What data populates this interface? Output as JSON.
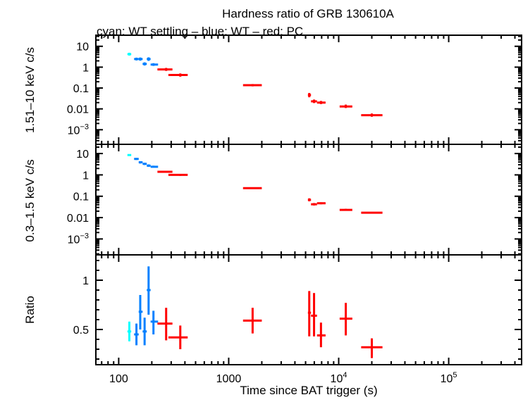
{
  "chart_data": {
    "type": "scatter",
    "title": "Hardness ratio of GRB 130610A",
    "subtitle": "cyan: WT settling – blue: WT – red: PC",
    "xlabel": "Time since BAT trigger (s)",
    "xscale": "log",
    "xlim": [
      62,
      460000
    ],
    "xticks": [
      {
        "v": 100,
        "label": "100"
      },
      {
        "v": 1000,
        "label": "1000"
      },
      {
        "v": 10000,
        "label": "10",
        "sup": "4"
      },
      {
        "v": 100000,
        "label": "10",
        "sup": "5"
      }
    ],
    "colors": {
      "wt_settling": "#00ffff",
      "wt": "#0080ff",
      "pc": "#ff0000"
    },
    "panels": [
      {
        "ylabel": "1.51–10 keV c/s",
        "yscale": "log",
        "ylim": [
          0.0002,
          34
        ],
        "yticks": [
          {
            "v": 10,
            "label": "10"
          },
          {
            "v": 1,
            "label": "1"
          },
          {
            "v": 0.1,
            "label": "0.1"
          },
          {
            "v": 0.01,
            "label": "0.01"
          },
          {
            "v": 0.001,
            "label": "10",
            "sup": "−3"
          }
        ],
        "points": [
          {
            "mode": "wt_settling",
            "t": 125,
            "tlo": 120,
            "thi": 130,
            "y": 4.2,
            "ylo": 3.6,
            "yhi": 4.9
          },
          {
            "mode": "wt",
            "t": 145,
            "tlo": 138,
            "thi": 152,
            "y": 2.45,
            "ylo": 2.1,
            "yhi": 2.85
          },
          {
            "mode": "wt",
            "t": 157,
            "tlo": 152,
            "thi": 165,
            "y": 2.45,
            "ylo": 2.05,
            "yhi": 2.9
          },
          {
            "mode": "wt",
            "t": 172,
            "tlo": 165,
            "thi": 180,
            "y": 1.43,
            "ylo": 1.2,
            "yhi": 1.7
          },
          {
            "mode": "wt",
            "t": 187,
            "tlo": 180,
            "thi": 195,
            "y": 2.45,
            "ylo": 2.0,
            "yhi": 2.95
          },
          {
            "mode": "wt",
            "t": 207,
            "tlo": 195,
            "thi": 228,
            "y": 1.33,
            "ylo": 1.15,
            "yhi": 1.55
          },
          {
            "mode": "pc",
            "t": 270,
            "tlo": 225,
            "thi": 308,
            "y": 0.78,
            "ylo": 0.66,
            "yhi": 0.92
          },
          {
            "mode": "pc",
            "t": 363,
            "tlo": 283,
            "thi": 424,
            "y": 0.42,
            "ylo": 0.35,
            "yhi": 0.5
          },
          {
            "mode": "pc",
            "t": 1650,
            "tlo": 1350,
            "thi": 2000,
            "y": 0.136,
            "ylo": 0.12,
            "yhi": 0.155
          },
          {
            "mode": "pc",
            "t": 5400,
            "tlo": 5250,
            "thi": 5600,
            "y": 0.046,
            "ylo": 0.036,
            "yhi": 0.058
          },
          {
            "mode": "pc",
            "t": 5970,
            "tlo": 5600,
            "thi": 6350,
            "y": 0.023,
            "ylo": 0.019,
            "yhi": 0.028
          },
          {
            "mode": "pc",
            "t": 6900,
            "tlo": 6350,
            "thi": 7600,
            "y": 0.02,
            "ylo": 0.017,
            "yhi": 0.024
          },
          {
            "mode": "pc",
            "t": 11600,
            "tlo": 10200,
            "thi": 13300,
            "y": 0.013,
            "ylo": 0.011,
            "yhi": 0.016
          },
          {
            "mode": "pc",
            "t": 20000,
            "tlo": 16000,
            "thi": 25000,
            "y": 0.005,
            "ylo": 0.0042,
            "yhi": 0.006
          }
        ]
      },
      {
        "ylabel": "0.3–1.5 keV c/s",
        "yscale": "log",
        "ylim": [
          0.00018,
          27
        ],
        "yticks": [
          {
            "v": 10,
            "label": "10"
          },
          {
            "v": 1,
            "label": "1"
          },
          {
            "v": 0.1,
            "label": "0.1"
          },
          {
            "v": 0.01,
            "label": "0.01"
          },
          {
            "v": 0.001,
            "label": "10",
            "sup": "−3"
          }
        ],
        "points": [
          {
            "mode": "wt_settling",
            "t": 125,
            "tlo": 120,
            "thi": 130,
            "y": 8.5,
            "ylo": 7.8,
            "yhi": 9.3
          },
          {
            "mode": "wt",
            "t": 145,
            "tlo": 138,
            "thi": 152,
            "y": 5.6,
            "ylo": 5.0,
            "yhi": 6.2
          },
          {
            "mode": "wt",
            "t": 157,
            "tlo": 152,
            "thi": 165,
            "y": 3.9,
            "ylo": 3.4,
            "yhi": 4.4
          },
          {
            "mode": "wt",
            "t": 172,
            "tlo": 165,
            "thi": 180,
            "y": 3.3,
            "ylo": 2.9,
            "yhi": 3.7
          },
          {
            "mode": "wt",
            "t": 187,
            "tlo": 180,
            "thi": 195,
            "y": 2.7,
            "ylo": 2.4,
            "yhi": 3.1
          },
          {
            "mode": "wt",
            "t": 207,
            "tlo": 195,
            "thi": 228,
            "y": 2.4,
            "ylo": 2.2,
            "yhi": 2.7
          },
          {
            "mode": "pc",
            "t": 270,
            "tlo": 225,
            "thi": 308,
            "y": 1.4,
            "ylo": 1.25,
            "yhi": 1.55
          },
          {
            "mode": "pc",
            "t": 363,
            "tlo": 283,
            "thi": 424,
            "y": 1.0,
            "ylo": 0.9,
            "yhi": 1.1
          },
          {
            "mode": "pc",
            "t": 1650,
            "tlo": 1350,
            "thi": 2000,
            "y": 0.24,
            "ylo": 0.22,
            "yhi": 0.26
          },
          {
            "mode": "pc",
            "t": 5400,
            "tlo": 5250,
            "thi": 5600,
            "y": 0.068,
            "ylo": 0.058,
            "yhi": 0.08
          },
          {
            "mode": "pc",
            "t": 5970,
            "tlo": 5600,
            "thi": 6350,
            "y": 0.042,
            "ylo": 0.037,
            "yhi": 0.048
          },
          {
            "mode": "pc",
            "t": 6900,
            "tlo": 6350,
            "thi": 7600,
            "y": 0.047,
            "ylo": 0.042,
            "yhi": 0.052
          },
          {
            "mode": "pc",
            "t": 11600,
            "tlo": 10200,
            "thi": 13300,
            "y": 0.023,
            "ylo": 0.021,
            "yhi": 0.026
          },
          {
            "mode": "pc",
            "t": 20000,
            "tlo": 16000,
            "thi": 25000,
            "y": 0.017,
            "ylo": 0.0155,
            "yhi": 0.0185
          }
        ]
      },
      {
        "ylabel": "Ratio",
        "yscale": "linear",
        "ylim": [
          0.143,
          1.257
        ],
        "yticks": [
          {
            "v": 1,
            "label": "1"
          },
          {
            "v": 0.5,
            "label": "0.5"
          }
        ],
        "minor_step": 0.1,
        "points": [
          {
            "mode": "wt_settling",
            "t": 125,
            "tlo": 120,
            "thi": 130,
            "y": 0.48,
            "ylo": 0.38,
            "yhi": 0.58
          },
          {
            "mode": "wt",
            "t": 145,
            "tlo": 138,
            "thi": 152,
            "y": 0.45,
            "ylo": 0.34,
            "yhi": 0.56
          },
          {
            "mode": "wt",
            "t": 157,
            "tlo": 152,
            "thi": 165,
            "y": 0.68,
            "ylo": 0.5,
            "yhi": 0.85
          },
          {
            "mode": "wt",
            "t": 172,
            "tlo": 165,
            "thi": 180,
            "y": 0.48,
            "ylo": 0.34,
            "yhi": 0.62
          },
          {
            "mode": "wt",
            "t": 187,
            "tlo": 180,
            "thi": 195,
            "y": 0.9,
            "ylo": 0.65,
            "yhi": 1.14
          },
          {
            "mode": "wt",
            "t": 207,
            "tlo": 195,
            "thi": 228,
            "y": 0.58,
            "ylo": 0.45,
            "yhi": 0.69
          },
          {
            "mode": "pc",
            "t": 270,
            "tlo": 225,
            "thi": 308,
            "y": 0.56,
            "ylo": 0.39,
            "yhi": 0.72
          },
          {
            "mode": "pc",
            "t": 363,
            "tlo": 283,
            "thi": 424,
            "y": 0.42,
            "ylo": 0.3,
            "yhi": 0.54
          },
          {
            "mode": "pc",
            "t": 1650,
            "tlo": 1350,
            "thi": 2000,
            "y": 0.59,
            "ylo": 0.46,
            "yhi": 0.72
          },
          {
            "mode": "pc",
            "t": 5400,
            "tlo": 5250,
            "thi": 5600,
            "y": 0.67,
            "ylo": 0.43,
            "yhi": 0.89
          },
          {
            "mode": "pc",
            "t": 5970,
            "tlo": 5600,
            "thi": 6350,
            "y": 0.64,
            "ylo": 0.43,
            "yhi": 0.87
          },
          {
            "mode": "pc",
            "t": 6900,
            "tlo": 6350,
            "thi": 7600,
            "y": 0.44,
            "ylo": 0.32,
            "yhi": 0.57
          },
          {
            "mode": "pc",
            "t": 11600,
            "tlo": 10200,
            "thi": 13300,
            "y": 0.61,
            "ylo": 0.44,
            "yhi": 0.77
          },
          {
            "mode": "pc",
            "t": 20000,
            "tlo": 16000,
            "thi": 25000,
            "y": 0.32,
            "ylo": 0.21,
            "yhi": 0.41
          }
        ]
      }
    ]
  }
}
